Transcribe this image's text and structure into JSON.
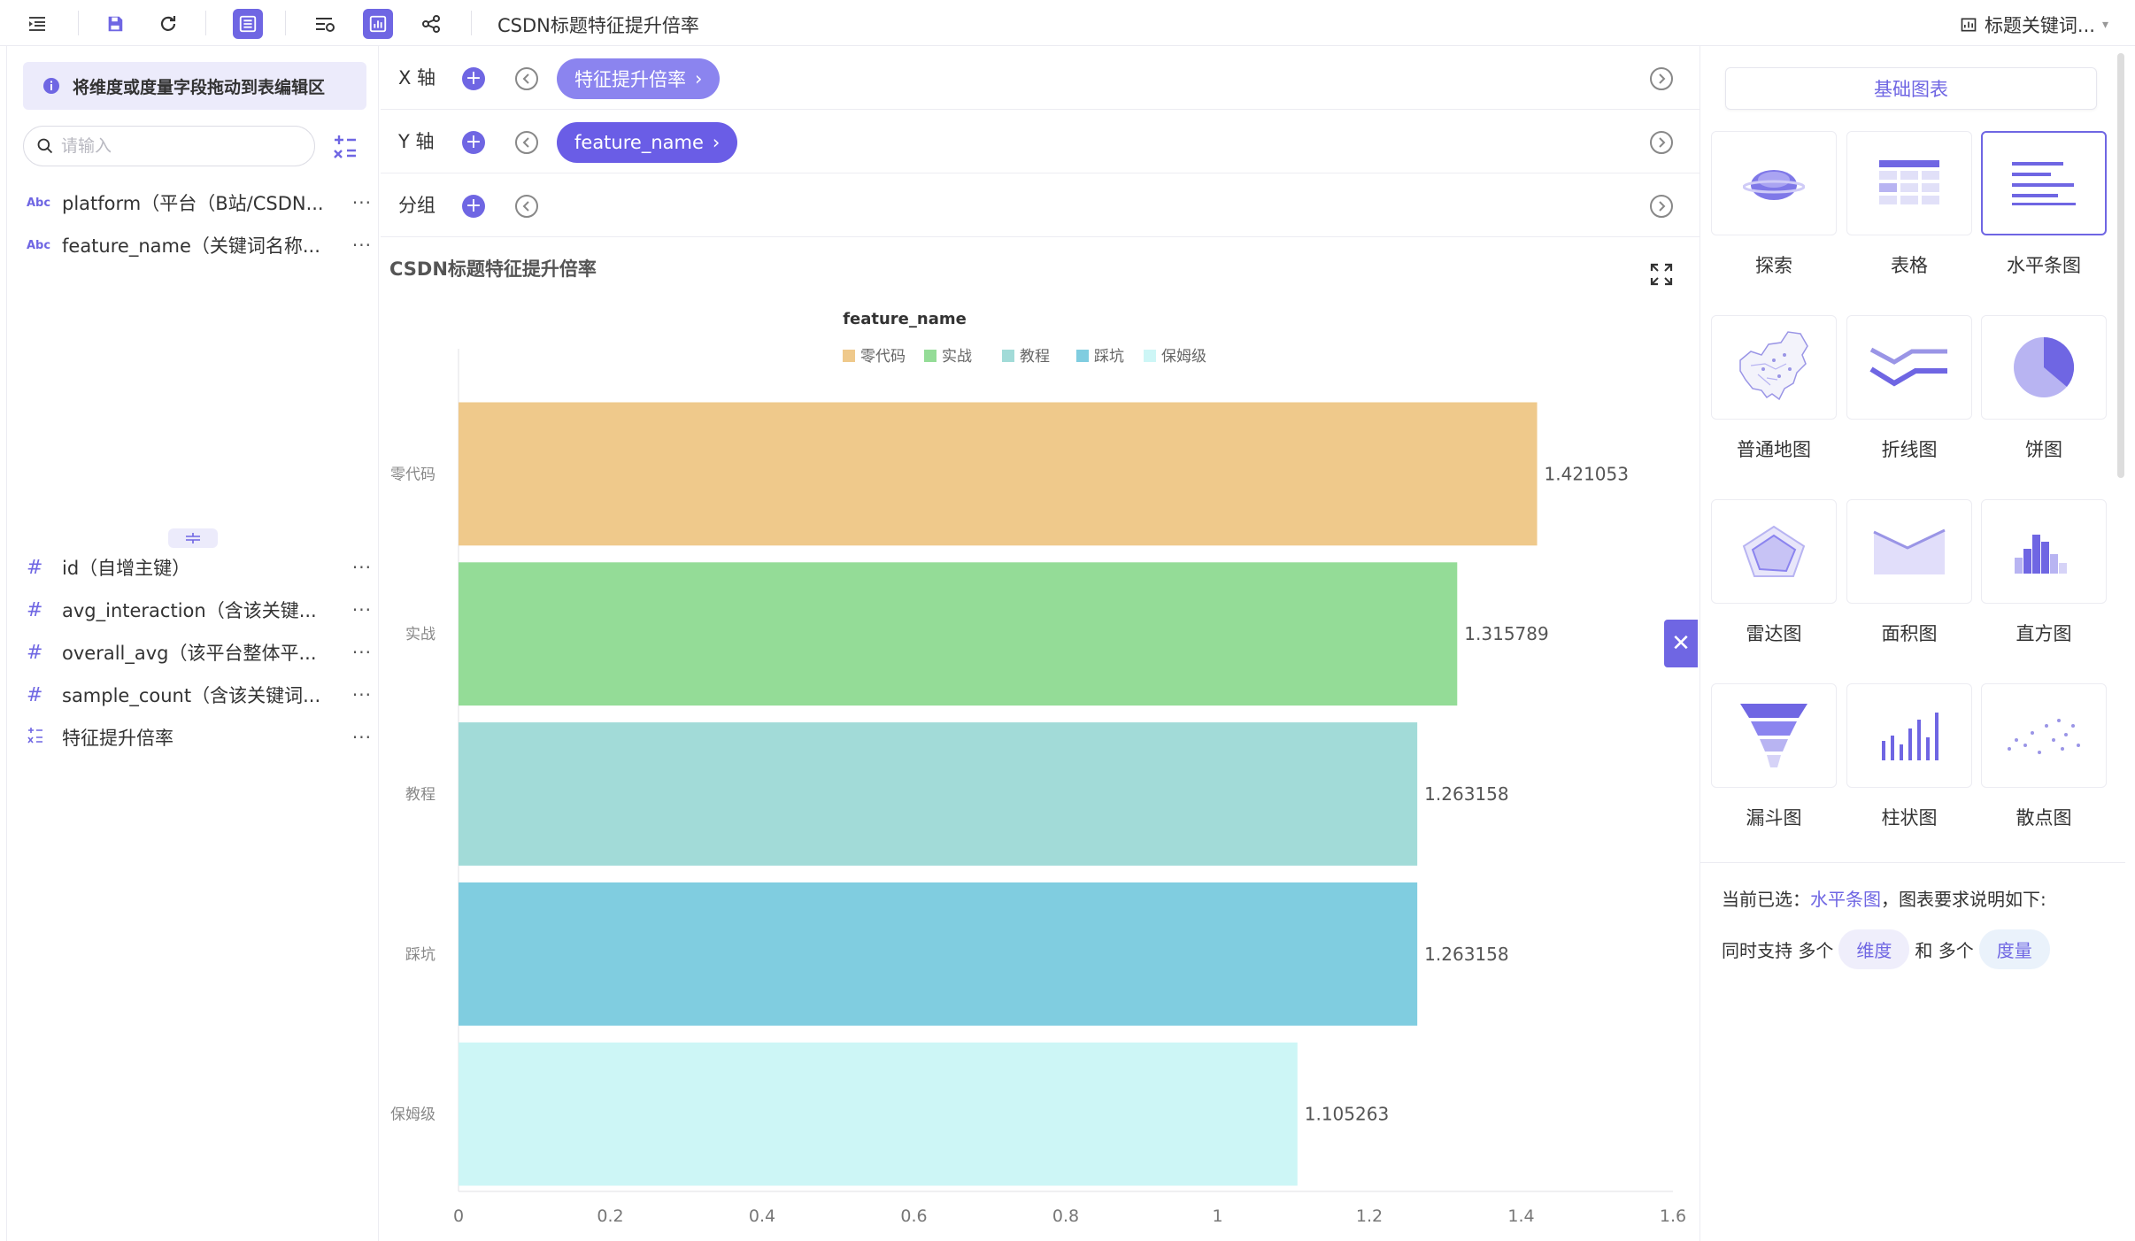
{
  "toolbar": {
    "title": "CSDN标题特征提升倍率",
    "right_label": "标题关键词...",
    "accent": "#6f66e3"
  },
  "left_panel": {
    "tip": "将维度或度量字段拖动到表编辑区",
    "search_placeholder": "请输入",
    "dimensions": [
      {
        "type": "Abc",
        "name": "platform（平台（B站/CSDN...",
        "more": "···"
      },
      {
        "type": "Abc",
        "name": "feature_name（关键词名称...",
        "more": "···"
      }
    ],
    "measures": [
      {
        "type": "#",
        "name": "id（自增主键）",
        "more": "···"
      },
      {
        "type": "#",
        "name": "avg_interaction（含该关键...",
        "more": "···"
      },
      {
        "type": "#",
        "name": "overall_avg（该平台整体平...",
        "more": "···"
      },
      {
        "type": "#",
        "name": "sample_count（含该关键词...",
        "more": "···"
      },
      {
        "type": "calc",
        "name": "特征提升倍率",
        "more": "···"
      }
    ]
  },
  "config": {
    "x_label": "X 轴",
    "x_chip": "特征提升倍率",
    "y_label": "Y 轴",
    "y_chip": "feature_name",
    "group_label": "分组"
  },
  "chart_title": "CSDN标题特征提升倍率",
  "chart_data": {
    "type": "bar",
    "orientation": "horizontal",
    "legend_title": "feature_name",
    "categories": [
      "零代码",
      "实战",
      "教程",
      "踩坑",
      "保姆级"
    ],
    "values": [
      1.421053,
      1.315789,
      1.263158,
      1.263158,
      1.105263
    ],
    "value_labels": [
      "1.421053",
      "1.315789",
      "1.263158",
      "1.263158",
      "1.105263"
    ],
    "colors": [
      "#efc98b",
      "#94dc97",
      "#a2dbd8",
      "#80cde0",
      "#cdf6f6"
    ],
    "xlim": [
      0,
      1.6
    ],
    "xticks": [
      "0",
      "0.2",
      "0.4",
      "0.6",
      "0.8",
      "1",
      "1.2",
      "1.4",
      "1.6"
    ],
    "legend_position": "top",
    "grid": false
  },
  "right_panel": {
    "tab": "基础图表",
    "chart_types": [
      {
        "label": "探索",
        "icon": "planet-icon"
      },
      {
        "label": "表格",
        "icon": "table-icon"
      },
      {
        "label": "水平条图",
        "icon": "horizontal-bar-icon",
        "selected": true
      },
      {
        "label": "普通地图",
        "icon": "map-icon"
      },
      {
        "label": "折线图",
        "icon": "line-chart-icon"
      },
      {
        "label": "饼图",
        "icon": "pie-chart-icon"
      },
      {
        "label": "雷达图",
        "icon": "radar-chart-icon"
      },
      {
        "label": "面积图",
        "icon": "area-chart-icon"
      },
      {
        "label": "直方图",
        "icon": "histogram-icon"
      },
      {
        "label": "漏斗图",
        "icon": "funnel-chart-icon"
      },
      {
        "label": "柱状图",
        "icon": "column-chart-icon"
      },
      {
        "label": "散点图",
        "icon": "scatter-chart-icon"
      }
    ],
    "current_prefix": "当前已选：",
    "current_name": "水平条图",
    "current_suffix": "，图表要求说明如下:",
    "support_prefix": "同时支持 多个",
    "support_dim": "维度",
    "support_and": "和 多个",
    "support_measure": "度量"
  }
}
